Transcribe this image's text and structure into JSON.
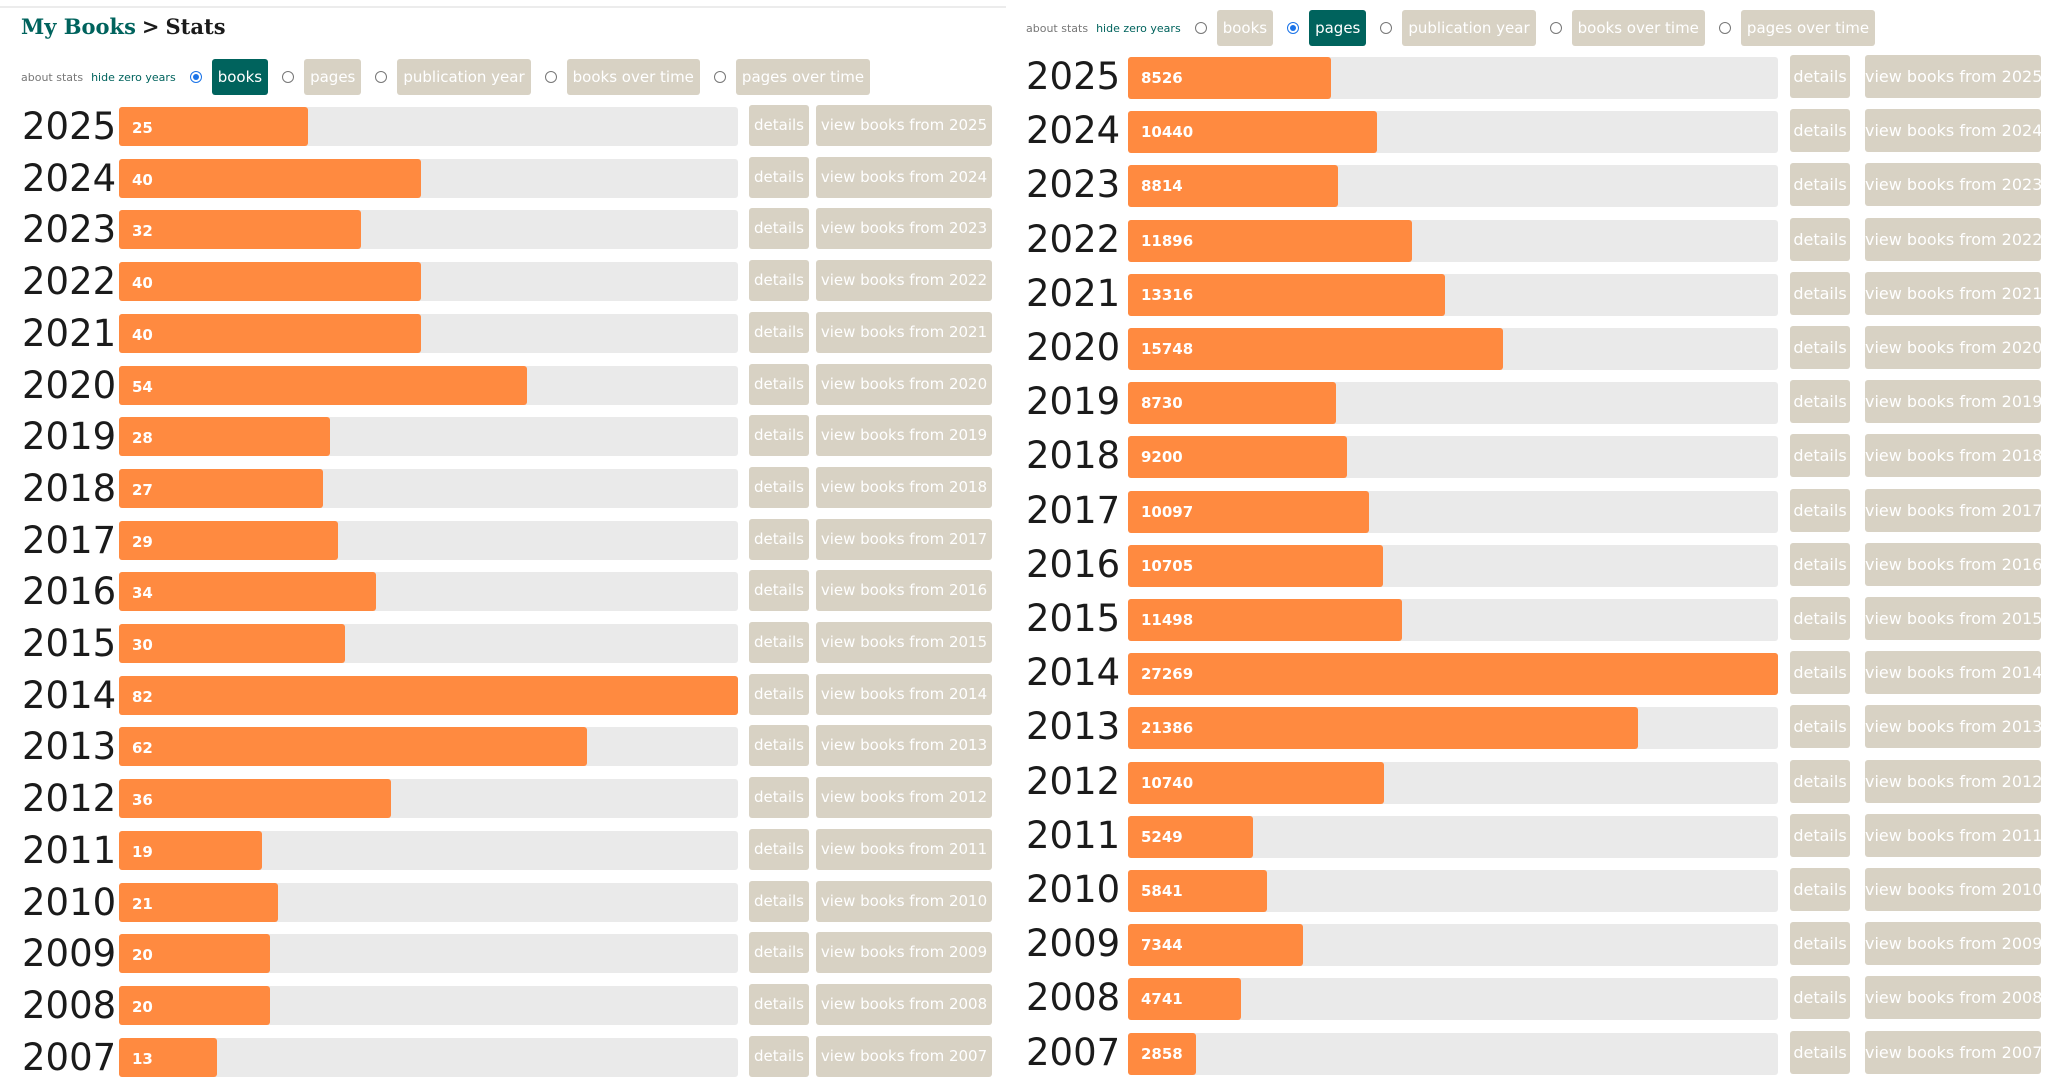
{
  "breadcrumb": {
    "root": "My Books",
    "separator": ">",
    "current": "Stats"
  },
  "controls": {
    "about_label": "about stats",
    "hide_zero_label": "hide zero years",
    "options": [
      "books",
      "pages",
      "publication year",
      "books over time",
      "pages over time"
    ]
  },
  "buttons": {
    "details_label": "details",
    "view_prefix": "view books from"
  },
  "left_panel": {
    "selected": "books"
  },
  "right_panel": {
    "selected": "pages"
  },
  "chart_data": [
    {
      "type": "bar",
      "title": "books",
      "categories": [
        "2025",
        "2024",
        "2023",
        "2022",
        "2021",
        "2020",
        "2019",
        "2018",
        "2017",
        "2016",
        "2015",
        "2014",
        "2013",
        "2012",
        "2011",
        "2010",
        "2009",
        "2008",
        "2007"
      ],
      "values": [
        25,
        40,
        32,
        40,
        40,
        54,
        28,
        27,
        29,
        34,
        30,
        82,
        62,
        36,
        19,
        21,
        20,
        20,
        13
      ],
      "xlim": [
        0,
        82
      ]
    },
    {
      "type": "bar",
      "title": "pages",
      "categories": [
        "2025",
        "2024",
        "2023",
        "2022",
        "2021",
        "2020",
        "2019",
        "2018",
        "2017",
        "2016",
        "2015",
        "2014",
        "2013",
        "2012",
        "2011",
        "2010",
        "2009",
        "2008",
        "2007"
      ],
      "values": [
        8526,
        10440,
        8814,
        11896,
        13316,
        15748,
        8730,
        9200,
        10097,
        10705,
        11498,
        27269,
        21386,
        10740,
        5249,
        5841,
        7344,
        4741,
        2858
      ],
      "xlim": [
        0,
        27269
      ]
    }
  ]
}
